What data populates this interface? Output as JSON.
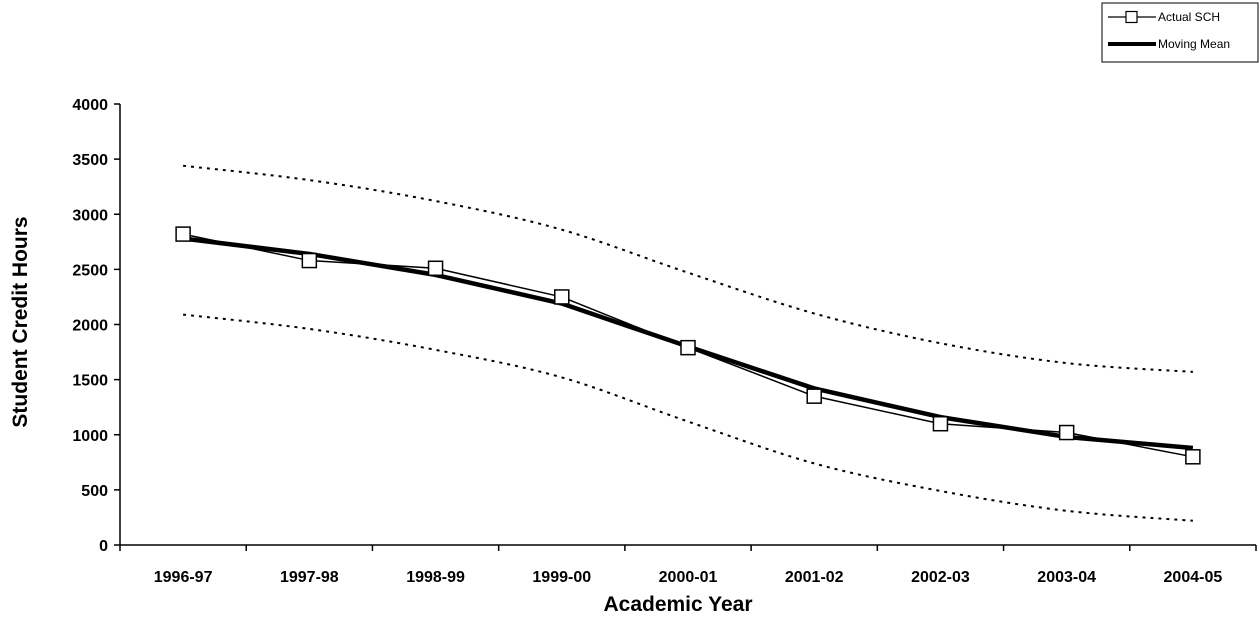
{
  "chart_data": {
    "type": "line",
    "xlabel": "Academic Year",
    "ylabel": "Student Credit Hours",
    "categories": [
      "1996-97",
      "1997-98",
      "1998-99",
      "1999-00",
      "2000-01",
      "2001-02",
      "2002-03",
      "2003-04",
      "2004-05"
    ],
    "yticks": [
      "0",
      "500",
      "1000",
      "1500",
      "2000",
      "2500",
      "3000",
      "3500",
      "4000"
    ],
    "ylim": [
      0,
      4000
    ],
    "grid": false,
    "legend_position": "top-right",
    "series": [
      {
        "name": "Actual SCH",
        "style": "thin-line-square-markers",
        "color": "#000000",
        "values": [
          2820,
          2580,
          2510,
          2250,
          1790,
          1350,
          1100,
          1020,
          800
        ]
      },
      {
        "name": "Moving Mean",
        "style": "thick-line",
        "color": "#000000",
        "values": [
          2780,
          2640,
          2450,
          2190,
          1800,
          1420,
          1160,
          980,
          880
        ]
      },
      {
        "style": "dotted-upper-band",
        "color": "#000000",
        "values": [
          3440,
          3310,
          3120,
          2860,
          2470,
          2100,
          1830,
          1650,
          1570
        ]
      },
      {
        "style": "dotted-lower-band",
        "color": "#000000",
        "values": [
          2090,
          1960,
          1770,
          1520,
          1120,
          740,
          490,
          310,
          220
        ]
      }
    ]
  }
}
